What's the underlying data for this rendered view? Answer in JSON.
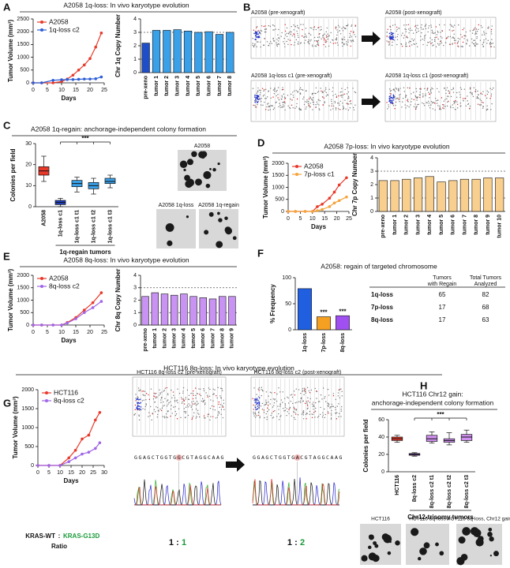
{
  "panel_labels": [
    "A",
    "B",
    "C",
    "D",
    "E",
    "F",
    "G",
    "H"
  ],
  "b_images": [
    "A2058 (pre-xenograft)",
    "A2058 (post-xenograft)",
    "A2058 1q-loss c1 (pre-xenograft)",
    "A2058 1q-loss c1 (post-xenograft)"
  ],
  "c_images": [
    "A2058",
    "A2058 1q-loss",
    "A2058 1q-regain"
  ],
  "g_images": [
    "HCT116 8q-loss c2 (pre-xenograft)",
    "HCT116 8q-loss c2 (post-xenograft)"
  ],
  "sequences": [
    "GGAGCTGGTGGCGTAGGCAAG",
    "GGAGCTGGTGACGTAGGCAAG"
  ],
  "kras": {
    "wt": "KRAS-WT",
    "sep": ":",
    "mut": "KRAS-G13D",
    "ratio_label": "Ratio"
  },
  "ratios": [
    {
      "wt": "1",
      "sep": ":",
      "mut": "1"
    },
    {
      "wt": "1",
      "sep": ":",
      "mut": "2"
    }
  ],
  "h_images": [
    "HCT116",
    "HCT116 8q-loss",
    "HCT116 8q-loss, Chr12 gain"
  ],
  "table": {
    "header": [
      [
        "Tumors",
        "with Regain"
      ],
      [
        "Total Tumors",
        "Analyzed"
      ]
    ],
    "rows": [
      [
        "1q-loss",
        65,
        82
      ],
      [
        "7p-loss",
        17,
        68
      ],
      [
        "8q-loss",
        17,
        63
      ]
    ]
  },
  "chart_data": [
    {
      "type": "line",
      "title": "A2058 1q-loss: In vivo karyotype evolution",
      "xlabel": "Days",
      "ylabel": "Tumor Volume (mm³)",
      "x": [
        0,
        3,
        7,
        10,
        12,
        14,
        16,
        18,
        20,
        22,
        24
      ],
      "xlim": [
        0,
        25
      ],
      "xticks": [
        0,
        5,
        10,
        15,
        20,
        25
      ],
      "ylim": [
        0,
        2500
      ],
      "yticks": [
        0,
        500,
        1000,
        1500,
        2000,
        2500
      ],
      "series": [
        {
          "name": "A2058",
          "color": "#e8392a",
          "values": [
            0,
            0,
            0,
            50,
            150,
            300,
            500,
            700,
            950,
            1400,
            1950
          ]
        },
        {
          "name": "1q-loss c2",
          "color": "#2f5fd6",
          "values": [
            0,
            0,
            100,
            120,
            130,
            130,
            140,
            150,
            150,
            160,
            230
          ]
        }
      ]
    },
    {
      "type": "bar",
      "ylabel": "Chr 1q Copy Number",
      "categories": [
        "pre-xeno",
        "tumor 1",
        "tumor 2",
        "tumor 3",
        "tumor 4",
        "tumor 5",
        "tumor 6",
        "tumor 7",
        "tumor 8"
      ],
      "values": [
        2.2,
        3.15,
        3.15,
        3.2,
        3.1,
        3.0,
        3.05,
        2.85,
        3.0
      ],
      "colors": [
        "#1f4fc8",
        "#3aa0e8",
        "#3aa0e8",
        "#3aa0e8",
        "#3aa0e8",
        "#3aa0e8",
        "#3aa0e8",
        "#3aa0e8",
        "#3aa0e8"
      ],
      "ylim": [
        0,
        4
      ],
      "yticks": [
        0,
        1,
        2,
        3,
        4
      ],
      "hlines": [
        1,
        3
      ]
    },
    {
      "type": "box",
      "title": "A2058 1q-regain: anchorage-independent colony formation",
      "ylabel": "Colonies per field",
      "xlabel": "1q-regain tumors",
      "categories": [
        "A2058",
        "1q-loss c1",
        "1q-loss c1 t1",
        "1q-loss c1 t2",
        "1q-loss c1 t3"
      ],
      "values": [
        [
          12,
          15,
          17,
          19,
          24
        ],
        [
          0,
          1,
          2,
          3,
          4
        ],
        [
          7,
          9.5,
          11,
          12.5,
          14
        ],
        [
          6,
          8.5,
          10,
          11.5,
          13.5
        ],
        [
          9,
          11,
          12,
          13.5,
          15
        ]
      ],
      "colors": [
        "#e8392a",
        "#2040c0",
        "#3aa0e8",
        "#3aa0e8",
        "#3aa0e8"
      ],
      "ylim": [
        0,
        30
      ],
      "yticks": [
        0,
        10,
        20,
        30
      ],
      "annotation": "***"
    },
    {
      "type": "line",
      "title": "A2058 7p-loss: In vivo karyotype evolution",
      "xlabel": "Days",
      "ylabel": "Tumor Volume (mm³)",
      "x": [
        0,
        3,
        7,
        10,
        12,
        14,
        17,
        19,
        21,
        24
      ],
      "xlim": [
        0,
        25
      ],
      "xticks": [
        0,
        5,
        10,
        15,
        20,
        25
      ],
      "ylim": [
        0,
        2000
      ],
      "yticks": [
        0,
        500,
        1000,
        1500,
        2000
      ],
      "series": [
        {
          "name": "A2058",
          "color": "#e8392a",
          "values": [
            0,
            0,
            0,
            0,
            200,
            300,
            550,
            800,
            1100,
            1400
          ]
        },
        {
          "name": "7p-loss c1",
          "color": "#f5a43a",
          "values": [
            0,
            0,
            0,
            0,
            30,
            80,
            200,
            350,
            450,
            600
          ]
        }
      ]
    },
    {
      "type": "bar",
      "ylabel": "Chr 7p Copy Number",
      "categories": [
        "pre-xeno",
        "tumor 1",
        "tumor 2",
        "tumor 3",
        "tumor 4",
        "tumor 5",
        "tumor 6",
        "tumor 7",
        "tumor 8",
        "tumor 9",
        "tumor 10"
      ],
      "values": [
        2.3,
        2.3,
        2.4,
        2.5,
        2.6,
        2.2,
        2.3,
        2.4,
        2.4,
        2.5,
        2.5
      ],
      "color": "#f8cf8e",
      "ylim": [
        0,
        4
      ],
      "yticks": [
        0,
        1,
        2,
        3,
        4
      ],
      "hlines": [
        1,
        3
      ]
    },
    {
      "type": "line",
      "title": "A2058 8q-loss: In vivo karyotype evolution",
      "xlabel": "Days",
      "ylabel": "Tumor Volume (mm³)",
      "x": [
        0,
        3,
        7,
        10,
        12,
        15,
        18,
        21,
        24
      ],
      "xlim": [
        0,
        25
      ],
      "xticks": [
        0,
        5,
        10,
        15,
        20,
        25
      ],
      "ylim": [
        0,
        2000
      ],
      "yticks": [
        0,
        500,
        1000,
        1500,
        2000
      ],
      "series": [
        {
          "name": "A2058",
          "color": "#e8392a",
          "values": [
            0,
            0,
            0,
            0,
            100,
            300,
            600,
            900,
            1300
          ]
        },
        {
          "name": "8q-loss c2",
          "color": "#a066e6",
          "values": [
            0,
            0,
            0,
            0,
            80,
            250,
            500,
            700,
            950
          ]
        }
      ]
    },
    {
      "type": "bar",
      "ylabel": "Chr 8q Copy Number",
      "categories": [
        "pre-xeno",
        "tumor 1",
        "tumor 2",
        "tumor 3",
        "tumor 4",
        "tumor 5",
        "tumor 6",
        "tumor 7",
        "tumor 8",
        "tumor 9"
      ],
      "values": [
        2.3,
        2.6,
        2.5,
        2.4,
        2.5,
        2.3,
        2.2,
        2.1,
        2.3,
        2.3
      ],
      "color": "#c893f2",
      "ylim": [
        0,
        4
      ],
      "yticks": [
        0,
        1,
        2,
        3,
        4
      ],
      "hlines": [
        1,
        3
      ]
    },
    {
      "type": "bar",
      "title": "A2058: regain of targeted chromosome",
      "ylabel": "% Frequency",
      "categories": [
        "1q-loss",
        "7p-loss",
        "8q-loss"
      ],
      "values": [
        79,
        25,
        27
      ],
      "colors": [
        "#1f5fe0",
        "#f5a020",
        "#a050f0"
      ],
      "significance": [
        null,
        "***",
        "***"
      ],
      "ylim": [
        0,
        100
      ],
      "yticks": [
        0,
        50,
        100
      ]
    },
    {
      "type": "line",
      "title": "HCT116 8q-loss: In vivo karyotype evolution",
      "xlabel": "Days",
      "ylabel": "Tumor Volume (mm³)",
      "x": [
        0,
        5,
        10,
        14,
        17,
        20,
        23,
        26,
        28
      ],
      "xlim": [
        0,
        30
      ],
      "xticks": [
        0,
        5,
        10,
        15,
        20,
        25,
        30
      ],
      "ylim": [
        0,
        2000
      ],
      "yticks": [
        0,
        500,
        1000,
        1500,
        2000
      ],
      "series": [
        {
          "name": "HCT116",
          "color": "#e8392a",
          "values": [
            0,
            0,
            0,
            200,
            400,
            700,
            800,
            1200,
            1400
          ]
        },
        {
          "name": "8q-loss c2",
          "color": "#a066e6",
          "values": [
            0,
            0,
            0,
            100,
            200,
            300,
            350,
            450,
            600
          ]
        }
      ]
    },
    {
      "type": "box",
      "title": [
        "HCT116 Chr12 gain:",
        "anchorage-independent colony formation"
      ],
      "ylabel": "Colonies per field",
      "xlabel": "Chr12-trisomy tumors",
      "categories": [
        "HCT116",
        "8q-loss c2",
        "8q-loss c2 t1",
        "8q-loss c2 t2",
        "8q-loss c2 t3"
      ],
      "values": [
        [
          34,
          36,
          38,
          40,
          42
        ],
        [
          18,
          19,
          20,
          21,
          22
        ],
        [
          33,
          35,
          38,
          42,
          46
        ],
        [
          31,
          34,
          36,
          38,
          45
        ],
        [
          34,
          36,
          40,
          43,
          48
        ]
      ],
      "colors": [
        "#e8392a",
        "#8a40d0",
        "#d090f0",
        "#d090f0",
        "#d090f0"
      ],
      "ylim": [
        0,
        60
      ],
      "yticks": [
        0,
        20,
        40,
        60
      ],
      "annotation": "***"
    }
  ]
}
